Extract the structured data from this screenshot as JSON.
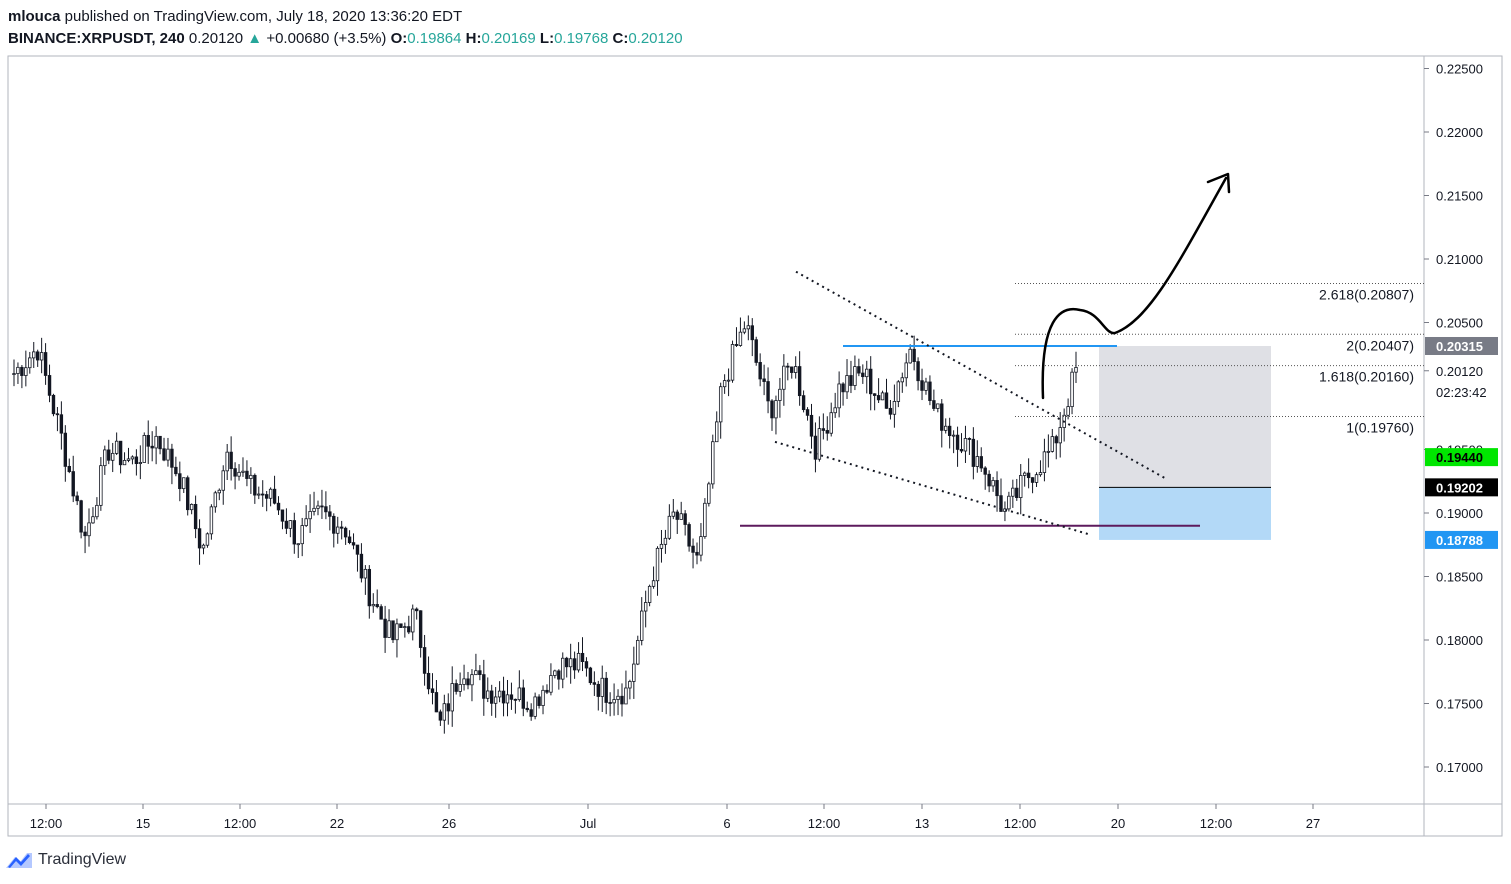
{
  "header": {
    "author": "mlouca",
    "published_text": " published on TradingView.com, July 18, 2020 13:36:20 EDT",
    "symbol": "BINANCE:XRPUSDT, 240",
    "last": "0.20120",
    "arrow": "▲",
    "change": "+0.00680 (+3.5%)",
    "o_label": "O:",
    "o": "0.19864",
    "h_label": "H:",
    "h": "0.20169",
    "l_label": "L:",
    "l": "0.19768",
    "c_label": "C:",
    "c": "0.20120"
  },
  "footer": {
    "brand": "TradingView",
    "logo_icon": "tradingview-logo-icon"
  },
  "colors": {
    "up": "#26a69a",
    "axis_text": "#131722",
    "blue_line": "#2196f3",
    "purple_line": "#5d1a5d",
    "green_badge": "#00e600",
    "blue_badge": "#2196f3",
    "grey_badge": "#787b86",
    "black_badge": "#000000",
    "gray_box": "#dcdde2",
    "blue_box": "#b3d9f7"
  },
  "chart_data": {
    "type": "candlestick",
    "title": "BINANCE:XRPUSDT, 240",
    "ylim": [
      0.1675,
      0.2265
    ],
    "y_ticks": [
      "0.22500",
      "0.22000",
      "0.21500",
      "0.21000",
      "0.20500",
      "0.20120",
      "0.19500",
      "0.19000",
      "0.18500",
      "0.18000",
      "0.17500",
      "0.17000"
    ],
    "x_ticks": [
      "12:00",
      "15",
      "12:00",
      "22",
      "26",
      "Jul",
      "6",
      "12:00",
      "13",
      "12:00",
      "20",
      "12:00",
      "27"
    ],
    "price_badges": [
      {
        "value": "0.20315",
        "style": "grey"
      },
      {
        "value": "0.19440",
        "style": "green"
      },
      {
        "value": "0.19202",
        "style": "black"
      },
      {
        "value": "0.18788",
        "style": "blue"
      }
    ],
    "countdown": "02:23:42",
    "fib_levels": [
      {
        "label": "2.618(0.20807)",
        "price": 0.20807
      },
      {
        "label": "2(0.20407)",
        "price": 0.20407
      },
      {
        "label": "1.618(0.20160)",
        "price": 0.2016
      },
      {
        "label": "1(0.19760)",
        "price": 0.1976
      }
    ],
    "horizontal_lines": [
      {
        "name": "resistance",
        "price": 0.20315
      },
      {
        "name": "support",
        "price": 0.189
      }
    ],
    "trendlines": [
      {
        "name": "upper-channel",
        "from": [
          0.209
        ],
        "to": [
          0.1927
        ]
      },
      {
        "name": "lower-channel",
        "from": [
          0.1956
        ],
        "to": [
          0.1883
        ]
      }
    ],
    "position_box": {
      "entry": 0.19202,
      "target": 0.20315,
      "stop": 0.18788
    },
    "candles_anchor_prices": [
      0.201,
      0.203,
      0.196,
      0.188,
      0.195,
      0.194,
      0.196,
      0.193,
      0.187,
      0.195,
      0.192,
      0.191,
      0.188,
      0.19,
      0.189,
      0.184,
      0.18,
      0.182,
      0.173,
      0.178,
      0.176,
      0.176,
      0.175,
      0.178,
      0.178,
      0.176,
      0.176,
      0.185,
      0.19,
      0.186,
      0.2,
      0.205,
      0.198,
      0.202,
      0.195,
      0.2,
      0.201,
      0.198,
      0.203,
      0.198,
      0.196,
      0.194,
      0.19,
      0.193,
      0.195,
      0.2012
    ]
  }
}
